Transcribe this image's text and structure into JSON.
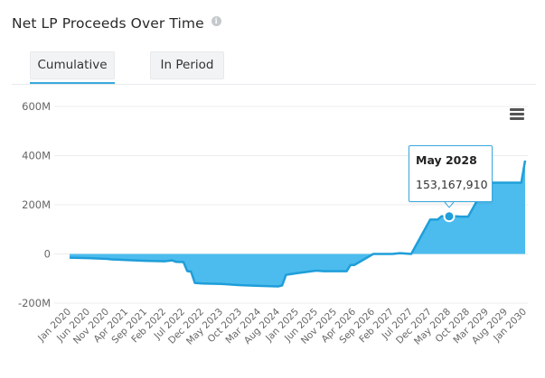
{
  "header": {
    "title": "Net LP Proceeds Over Time",
    "info_icon_glyph": "i"
  },
  "tabs": [
    {
      "label": "Cumulative",
      "active": true
    },
    {
      "label": "In Period",
      "active": false
    }
  ],
  "colors": {
    "area_fill": "#4cbcee",
    "line": "#1f9ed9",
    "accent": "#3aa9de"
  },
  "tooltip": {
    "label": "May 2028",
    "value": "153,167,910"
  },
  "chart_data": {
    "type": "area",
    "ylabel": "",
    "xlabel": "",
    "ylim": [
      -200000000,
      600000000
    ],
    "y_ticks": [
      "600M",
      "400M",
      "200M",
      "0",
      "-200M"
    ],
    "y_tick_values": [
      600000000,
      400000000,
      200000000,
      0,
      -200000000
    ],
    "x_tick_labels": [
      "Jan 2020",
      "Jun 2020",
      "Nov 2020",
      "Apr 2021",
      "Sep 2021",
      "Feb 2022",
      "Jul 2022",
      "Dec 2022",
      "May 2023",
      "Oct 2023",
      "Mar 2024",
      "Aug 2024",
      "Jan 2025",
      "Jun 2025",
      "Nov 2025",
      "Apr 2026",
      "Sep 2026",
      "Feb 2027",
      "Jul 2027",
      "Dec 2027",
      "May 2028",
      "Oct 2028",
      "Mar 2029",
      "Aug 2029",
      "Jan 2030"
    ],
    "grid": "horizontal",
    "legend": "none",
    "series": [
      {
        "x": [
          "Jan 2020",
          "Jun 2020",
          "Nov 2020",
          "Dec 2020",
          "Apr 2021",
          "Sep 2021",
          "Feb 2022",
          "Apr 2022",
          "May 2022",
          "Jul 2022",
          "Aug 2022",
          "Sep 2022",
          "Oct 2022",
          "Dec 2022",
          "May 2023",
          "Oct 2023",
          "Mar 2024",
          "Aug 2024",
          "Sep 2024",
          "Oct 2024",
          "Jan 2025",
          "Jun 2025",
          "Aug 2025",
          "Nov 2025",
          "Feb 2026",
          "Mar 2026",
          "Apr 2026",
          "Sep 2026",
          "Feb 2027",
          "Apr 2027",
          "Jul 2027",
          "Dec 2027",
          "Feb 2028",
          "Mar 2028",
          "May 2028",
          "Jul 2028",
          "Aug 2028",
          "Oct 2028",
          "Mar 2029",
          "Aug 2029",
          "Nov 2029",
          "Dec 2029",
          "Jan 2030"
        ],
        "values": [
          -15000000,
          -17000000,
          -20000000,
          -22000000,
          -25000000,
          -28000000,
          -30000000,
          -26000000,
          -32000000,
          -33000000,
          -70000000,
          -72000000,
          -118000000,
          -120000000,
          -122000000,
          -127000000,
          -130000000,
          -132000000,
          -128000000,
          -85000000,
          -78000000,
          -68000000,
          -70000000,
          -70000000,
          -70000000,
          -45000000,
          -45000000,
          0,
          0,
          3000000,
          0,
          140000000,
          140000000,
          153167910,
          153167910,
          153000000,
          152000000,
          152000000,
          290000000,
          290000000,
          290000000,
          290000000,
          380000000
        ]
      }
    ]
  }
}
